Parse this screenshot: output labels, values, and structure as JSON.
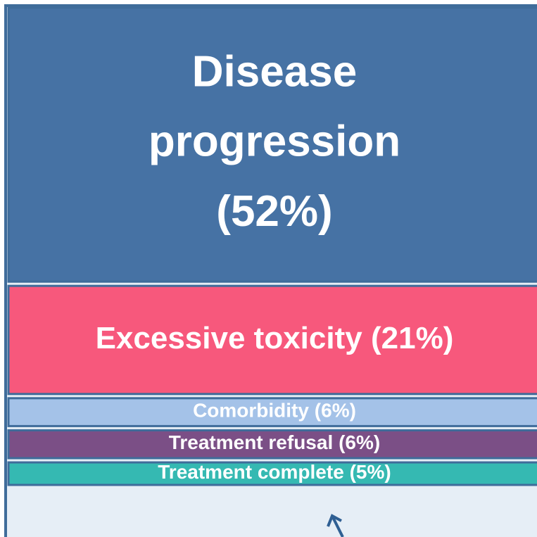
{
  "chart_data": {
    "type": "stacked-bar",
    "categories": [
      "Disease progression",
      "Excessive toxicity",
      "Comorbidity",
      "Treatment refusal",
      "Treatment complete"
    ],
    "values": [
      52,
      21,
      6,
      6,
      5
    ],
    "value_labels": [
      "(52%)",
      "(21%)",
      "(6%)",
      "(6%)",
      "(5%)"
    ],
    "colors": [
      "#4672a4",
      "#f7587c",
      "#a4c2e8",
      "#7b4f86",
      "#35b9b2"
    ]
  }
}
